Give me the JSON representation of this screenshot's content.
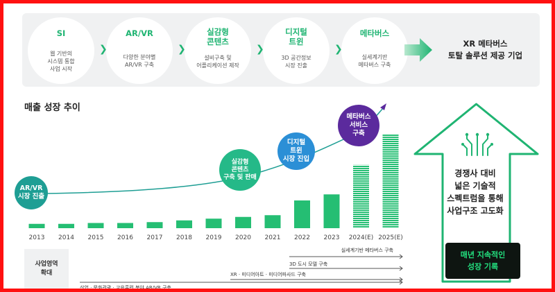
{
  "colors": {
    "accent_green": "#1fb472",
    "teal": "#1e9e94",
    "mid_green": "#25b988",
    "blue": "#2b8fd6",
    "purple": "#5b2a9d",
    "bar_green": "#25be73",
    "frame_red": "#ff1010"
  },
  "stages": [
    {
      "title": "SI",
      "desc": [
        "웹 기반의",
        "시스템 통합",
        "사업 시작"
      ]
    },
    {
      "title": "AR/VR",
      "desc": [
        "다양한 분야별",
        "AR/VR 구축"
      ]
    },
    {
      "title": "실감형\n콘텐츠",
      "desc": [
        "설비구축 및",
        "어플리케이션 제작"
      ]
    },
    {
      "title": "디지털\n트윈",
      "desc": [
        "3D 공간정보",
        "시장 진출"
      ]
    },
    {
      "title": "메타버스",
      "desc": [
        "실세계기반",
        "메타버스 구축"
      ]
    }
  ],
  "final_goal": "XR 메타버스\n토탈 솔루션 제공 기업",
  "section_title": "매출 성장 추이",
  "chart_data": {
    "type": "bar",
    "title": "매출 성장 추이",
    "categories": [
      "2013",
      "2014",
      "2015",
      "2016",
      "2017",
      "2018",
      "2019",
      "2020",
      "2021",
      "2022",
      "2023",
      "2024(E)",
      "2025(E)"
    ],
    "values": [
      0.5,
      0.5,
      0.6,
      0.6,
      0.7,
      0.9,
      1.1,
      1.3,
      1.5,
      3.2,
      3.9,
      7.3,
      10.8
    ],
    "estimated": [
      false,
      false,
      false,
      false,
      false,
      false,
      false,
      false,
      false,
      false,
      false,
      true,
      true
    ],
    "ylim": [
      0,
      12
    ],
    "grid": false
  },
  "milestones": [
    {
      "label": "AR/VR\n시장 진출",
      "color": "#1e9e94"
    },
    {
      "label": "실감형\n콘텐츠\n구축 및 판매",
      "color": "#25b988"
    },
    {
      "label": "디지털\n트윈\n시장 진입",
      "color": "#2b8fd6"
    },
    {
      "label": "메타버스\n서비스\n구축",
      "color": "#5b2a9d"
    }
  ],
  "expansion": {
    "label": "사업영역\n확대",
    "lines": [
      "실세계기반 메타버스 구축",
      "3D 도시 모델 구축",
      "XR · 미디어아트 · 미디어파사드 구축",
      "산업 · 문화관광 · 교육훈련 분야 AR/VR 구축"
    ]
  },
  "right_panel": {
    "text": "경쟁사 대비\n넓은 기술적\n스펙트럼을 통해\n사업구조 고도화",
    "badge": "매년 지속적인\n성장 기록"
  }
}
